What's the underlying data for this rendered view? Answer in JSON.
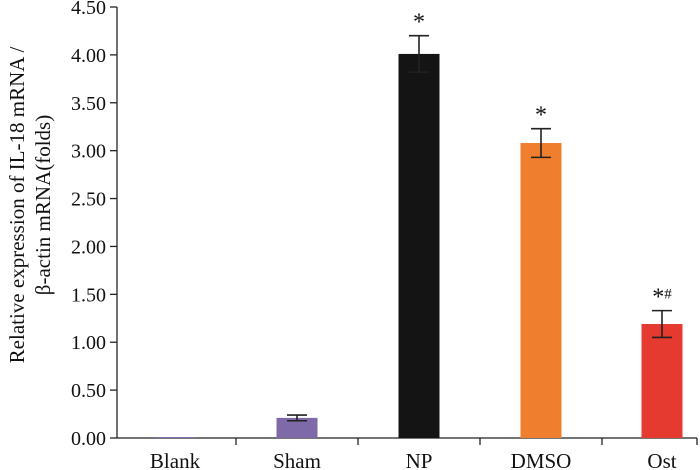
{
  "chart_data": {
    "type": "bar",
    "title": "",
    "ylabel_line1": "Relative expression of IL-18 mRNA /",
    "ylabel_line2": "β-actin mRNA(folds)",
    "xlabel": "",
    "ylim": [
      0,
      4.5
    ],
    "yticks": [
      "0.00",
      "0.50",
      "1.00",
      "1.50",
      "2.00",
      "2.50",
      "3.00",
      "3.50",
      "4.00",
      "4.50"
    ],
    "categories": [
      "Blank",
      "Sham",
      "NP",
      "DMSO",
      "Ost"
    ],
    "values": [
      0.01,
      0.21,
      4.01,
      3.08,
      1.19
    ],
    "errors": [
      0.0,
      0.03,
      0.19,
      0.15,
      0.14
    ],
    "annotations": [
      "",
      "",
      "*",
      "*",
      "*#"
    ],
    "colors": [
      "#7e6aa9",
      "#7e6aa9",
      "#141414",
      "#ef7f2e",
      "#e43a30"
    ]
  }
}
